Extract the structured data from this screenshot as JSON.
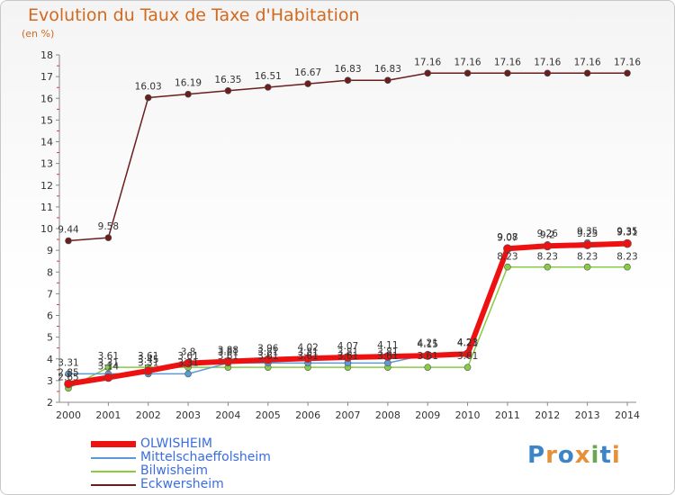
{
  "title": "Evolution du Taux de Taxe d'Habitation",
  "unit": "(en %)",
  "logo": {
    "text": "Proxiti",
    "letters": [
      "P",
      "r",
      "o",
      "x",
      "i",
      "t",
      "i"
    ],
    "colors": [
      "#3d85c6",
      "#e69138",
      "#3d85c6",
      "#e69138",
      "#6aa84f",
      "#3d85c6",
      "#e69138"
    ]
  },
  "chart_data": {
    "type": "line",
    "title": "Evolution du Taux de Taxe d'Habitation",
    "ylabel": "(en %)",
    "xlabel": "",
    "x": [
      "2000",
      "2001",
      "2002",
      "2003",
      "2004",
      "2005",
      "2006",
      "2007",
      "2008",
      "2009",
      "2010",
      "2011",
      "2012",
      "2013",
      "2014"
    ],
    "ylim": [
      2,
      18
    ],
    "yticks": [
      2,
      3,
      4,
      5,
      6,
      7,
      8,
      9,
      10,
      11,
      12,
      13,
      14,
      15,
      16,
      17,
      18
    ],
    "grid": false,
    "legend_position": "bottom-left",
    "series": [
      {
        "name": "OLWISHEIM",
        "color": "#ee1111",
        "values": [
          2.85,
          3.14,
          3.45,
          3.8,
          3.88,
          3.96,
          4.02,
          4.07,
          4.11,
          4.15,
          4.23,
          9.08,
          9.2,
          9.25,
          9.31
        ]
      },
      {
        "name": "Mittelschaeffolsheim",
        "color": "#5b9bd5",
        "values": [
          3.31,
          3.31,
          3.31,
          3.31,
          3.81,
          3.81,
          3.81,
          3.81,
          3.81,
          4.21,
          4.21,
          9.07,
          9.26,
          9.35,
          9.35
        ]
      },
      {
        "name": "Bilwisheim",
        "color": "#88cc44",
        "values": [
          2.65,
          3.61,
          3.61,
          3.61,
          3.61,
          3.61,
          3.61,
          3.61,
          3.61,
          3.61,
          3.61,
          8.23,
          8.23,
          8.23,
          8.23
        ]
      },
      {
        "name": "Eckwersheim",
        "color": "#6b1e1e",
        "values": [
          9.44,
          9.58,
          16.03,
          16.19,
          16.35,
          16.51,
          16.67,
          16.83,
          16.83,
          17.16,
          17.16,
          17.16,
          17.16,
          17.16,
          17.16
        ]
      }
    ]
  }
}
